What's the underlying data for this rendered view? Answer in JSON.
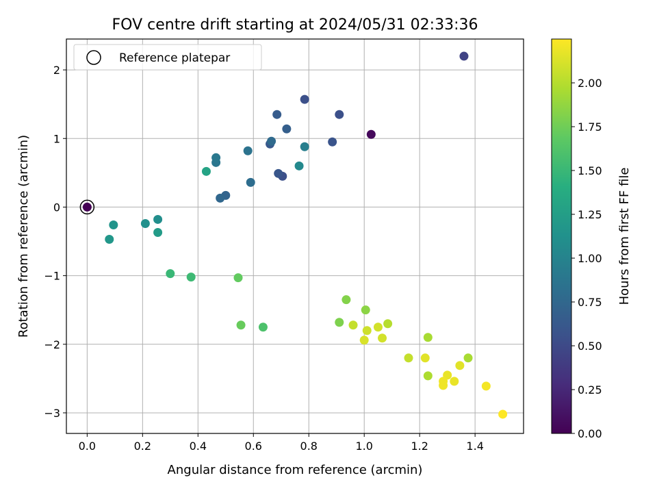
{
  "chart_data": {
    "type": "scatter",
    "title": "FOV centre drift starting at 2024/05/31 02:33:36",
    "xlabel": "Angular distance from reference (arcmin)",
    "ylabel": "Rotation from reference (arcmin)",
    "xlim": [
      -0.075,
      1.575
    ],
    "ylim": [
      -3.3,
      2.45
    ],
    "xticks": [
      0.0,
      0.2,
      0.4,
      0.6,
      0.8,
      1.0,
      1.2,
      1.4
    ],
    "xtick_labels": [
      "0.0",
      "0.2",
      "0.4",
      "0.6",
      "0.8",
      "1.0",
      "1.2",
      "1.4"
    ],
    "yticks": [
      -3,
      -2,
      -1,
      0,
      1,
      2
    ],
    "ytick_labels": [
      "−3",
      "−2",
      "−1",
      "0",
      "1",
      "2"
    ],
    "grid": true,
    "legend": {
      "placement": "top-left",
      "entries": [
        "Reference platepar"
      ]
    },
    "reference_point": {
      "x": 0.0,
      "y": 0.0
    },
    "colorbar": {
      "label": "Hours from first FF file",
      "colormap": "viridis",
      "range": [
        0.0,
        2.25
      ],
      "ticks": [
        0.0,
        0.25,
        0.5,
        0.75,
        1.0,
        1.25,
        1.5,
        1.75,
        2.0
      ],
      "tick_labels": [
        "0.00",
        "0.25",
        "0.50",
        "0.75",
        "1.00",
        "1.25",
        "1.50",
        "1.75",
        "2.00"
      ]
    },
    "points": [
      {
        "x": 0.0,
        "y": 0.0,
        "c": 0.0
      },
      {
        "x": 1.025,
        "y": 1.06,
        "c": 0.05
      },
      {
        "x": 1.36,
        "y": 2.2,
        "c": 0.45
      },
      {
        "x": 0.785,
        "y": 1.57,
        "c": 0.55
      },
      {
        "x": 0.91,
        "y": 1.35,
        "c": 0.55
      },
      {
        "x": 0.885,
        "y": 0.95,
        "c": 0.58
      },
      {
        "x": 0.705,
        "y": 0.45,
        "c": 0.55
      },
      {
        "x": 0.69,
        "y": 0.49,
        "c": 0.6
      },
      {
        "x": 0.66,
        "y": 0.92,
        "c": 0.62
      },
      {
        "x": 0.685,
        "y": 1.35,
        "c": 0.65
      },
      {
        "x": 0.72,
        "y": 1.14,
        "c": 0.68
      },
      {
        "x": 0.5,
        "y": 0.17,
        "c": 0.72
      },
      {
        "x": 0.48,
        "y": 0.13,
        "c": 0.75
      },
      {
        "x": 0.665,
        "y": 0.96,
        "c": 0.77
      },
      {
        "x": 0.59,
        "y": 0.36,
        "c": 0.8
      },
      {
        "x": 0.58,
        "y": 0.82,
        "c": 0.85
      },
      {
        "x": 0.465,
        "y": 0.65,
        "c": 0.88
      },
      {
        "x": 0.465,
        "y": 0.72,
        "c": 0.9
      },
      {
        "x": 0.785,
        "y": 0.88,
        "c": 0.95
      },
      {
        "x": 0.765,
        "y": 0.6,
        "c": 1.05
      },
      {
        "x": 0.255,
        "y": -0.18,
        "c": 1.1
      },
      {
        "x": 0.21,
        "y": -0.24,
        "c": 1.12
      },
      {
        "x": 0.095,
        "y": -0.26,
        "c": 1.15
      },
      {
        "x": 0.08,
        "y": -0.47,
        "c": 1.18
      },
      {
        "x": 0.255,
        "y": -0.37,
        "c": 1.22
      },
      {
        "x": 0.43,
        "y": 0.52,
        "c": 1.3
      },
      {
        "x": 0.3,
        "y": -0.97,
        "c": 1.5
      },
      {
        "x": 0.375,
        "y": -1.02,
        "c": 1.52
      },
      {
        "x": 0.635,
        "y": -1.75,
        "c": 1.6
      },
      {
        "x": 0.555,
        "y": -1.72,
        "c": 1.72
      },
      {
        "x": 0.545,
        "y": -1.03,
        "c": 1.7
      },
      {
        "x": 0.91,
        "y": -1.68,
        "c": 1.8
      },
      {
        "x": 0.935,
        "y": -1.35,
        "c": 1.82
      },
      {
        "x": 1.005,
        "y": -1.5,
        "c": 1.85
      },
      {
        "x": 1.375,
        "y": -2.2,
        "c": 1.95
      },
      {
        "x": 1.23,
        "y": -1.9,
        "c": 1.95
      },
      {
        "x": 1.23,
        "y": -2.46,
        "c": 1.97
      },
      {
        "x": 1.085,
        "y": -1.7,
        "c": 2.0
      },
      {
        "x": 1.16,
        "y": -2.2,
        "c": 2.05
      },
      {
        "x": 0.96,
        "y": -1.72,
        "c": 2.05
      },
      {
        "x": 1.01,
        "y": -1.8,
        "c": 2.08
      },
      {
        "x": 1.05,
        "y": -1.75,
        "c": 2.1
      },
      {
        "x": 1.065,
        "y": -1.91,
        "c": 2.1
      },
      {
        "x": 1.0,
        "y": -1.94,
        "c": 2.12
      },
      {
        "x": 1.22,
        "y": -2.2,
        "c": 2.15
      },
      {
        "x": 1.345,
        "y": -2.31,
        "c": 2.15
      },
      {
        "x": 1.3,
        "y": -2.45,
        "c": 2.18
      },
      {
        "x": 1.325,
        "y": -2.54,
        "c": 2.18
      },
      {
        "x": 1.285,
        "y": -2.54,
        "c": 2.2
      },
      {
        "x": 1.285,
        "y": -2.6,
        "c": 2.2
      },
      {
        "x": 1.44,
        "y": -2.61,
        "c": 2.22
      },
      {
        "x": 1.5,
        "y": -3.02,
        "c": 2.25
      }
    ]
  }
}
